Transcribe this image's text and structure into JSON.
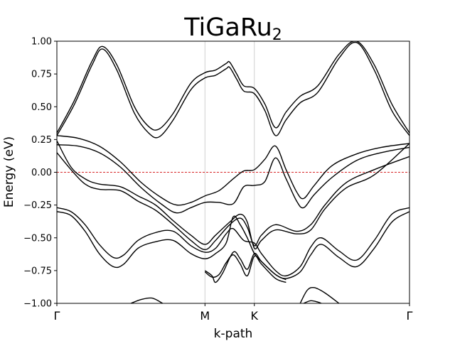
{
  "chart_data": {
    "type": "line",
    "title_base": "TiGaRu",
    "title_sub": "2",
    "xlabel": "k-path",
    "ylabel": "Energy (eV)",
    "ylim": [
      -1.0,
      1.0
    ],
    "xlim": [
      0,
      1
    ],
    "yticks": [
      -1.0,
      -0.75,
      -0.5,
      -0.25,
      0.0,
      0.25,
      0.5,
      0.75,
      1.0
    ],
    "ytick_labels": [
      "−1.00",
      "−0.75",
      "−0.50",
      "−0.25",
      "0.00",
      "0.25",
      "0.50",
      "0.75",
      "1.00"
    ],
    "high_symmetry_points": [
      {
        "label": "Γ",
        "x": 0.0
      },
      {
        "label": "M",
        "x": 0.42
      },
      {
        "label": "K",
        "x": 0.56
      },
      {
        "label": "Γ",
        "x": 1.0
      }
    ],
    "fermi_level": 0.0,
    "series": [
      {
        "points": [
          [
            0,
            0.3
          ],
          [
            0.05,
            0.55
          ],
          [
            0.1,
            0.85
          ],
          [
            0.13,
            0.96
          ],
          [
            0.17,
            0.82
          ],
          [
            0.22,
            0.5
          ],
          [
            0.26,
            0.35
          ],
          [
            0.29,
            0.33
          ],
          [
            0.33,
            0.45
          ],
          [
            0.38,
            0.68
          ],
          [
            0.42,
            0.76
          ],
          [
            0.45,
            0.78
          ],
          [
            0.48,
            0.83
          ],
          [
            0.49,
            0.84
          ],
          [
            0.51,
            0.75
          ],
          [
            0.53,
            0.66
          ],
          [
            0.56,
            0.64
          ],
          [
            0.59,
            0.52
          ],
          [
            0.62,
            0.34
          ],
          [
            0.65,
            0.46
          ],
          [
            0.69,
            0.58
          ],
          [
            0.74,
            0.66
          ],
          [
            0.8,
            0.9
          ],
          [
            0.85,
            1.0
          ],
          [
            0.9,
            0.82
          ],
          [
            0.95,
            0.52
          ],
          [
            1.0,
            0.3
          ]
        ]
      },
      {
        "points": [
          [
            0,
            0.28
          ],
          [
            0.05,
            0.52
          ],
          [
            0.1,
            0.82
          ],
          [
            0.13,
            0.94
          ],
          [
            0.17,
            0.78
          ],
          [
            0.22,
            0.45
          ],
          [
            0.26,
            0.3
          ],
          [
            0.29,
            0.27
          ],
          [
            0.33,
            0.4
          ],
          [
            0.38,
            0.63
          ],
          [
            0.42,
            0.72
          ],
          [
            0.45,
            0.74
          ],
          [
            0.48,
            0.79
          ],
          [
            0.49,
            0.8
          ],
          [
            0.51,
            0.71
          ],
          [
            0.53,
            0.62
          ],
          [
            0.56,
            0.6
          ],
          [
            0.59,
            0.47
          ],
          [
            0.62,
            0.28
          ],
          [
            0.65,
            0.4
          ],
          [
            0.69,
            0.53
          ],
          [
            0.74,
            0.61
          ],
          [
            0.8,
            0.87
          ],
          [
            0.85,
            0.99
          ],
          [
            0.9,
            0.78
          ],
          [
            0.95,
            0.47
          ],
          [
            1.0,
            0.28
          ]
        ]
      },
      {
        "points": [
          [
            0,
            0.28
          ],
          [
            0.06,
            0.26
          ],
          [
            0.12,
            0.2
          ],
          [
            0.18,
            0.08
          ],
          [
            0.24,
            -0.08
          ],
          [
            0.3,
            -0.2
          ],
          [
            0.34,
            -0.25
          ],
          [
            0.38,
            -0.23
          ],
          [
            0.42,
            -0.18
          ],
          [
            0.46,
            -0.14
          ],
          [
            0.5,
            -0.05
          ],
          [
            0.53,
            0.01
          ],
          [
            0.56,
            0.02
          ],
          [
            0.59,
            0.1
          ],
          [
            0.62,
            0.2
          ],
          [
            0.65,
            0.02
          ],
          [
            0.68,
            -0.15
          ],
          [
            0.7,
            -0.2
          ],
          [
            0.73,
            -0.1
          ],
          [
            0.78,
            0.05
          ],
          [
            0.85,
            0.14
          ],
          [
            0.92,
            0.19
          ],
          [
            1.0,
            0.22
          ]
        ]
      },
      {
        "points": [
          [
            0,
            0.21
          ],
          [
            0.06,
            0.2
          ],
          [
            0.12,
            0.15
          ],
          [
            0.18,
            0.04
          ],
          [
            0.24,
            -0.12
          ],
          [
            0.3,
            -0.25
          ],
          [
            0.34,
            -0.31
          ],
          [
            0.38,
            -0.27
          ],
          [
            0.42,
            -0.23
          ],
          [
            0.46,
            -0.23
          ],
          [
            0.5,
            -0.24
          ],
          [
            0.53,
            -0.11
          ],
          [
            0.56,
            -0.1
          ],
          [
            0.59,
            -0.07
          ],
          [
            0.62,
            0.11
          ],
          [
            0.65,
            -0.05
          ],
          [
            0.68,
            -0.22
          ],
          [
            0.7,
            -0.27
          ],
          [
            0.73,
            -0.17
          ],
          [
            0.78,
            -0.04
          ],
          [
            0.85,
            0.09
          ],
          [
            0.92,
            0.15
          ],
          [
            1.0,
            0.19
          ]
        ]
      },
      {
        "points": [
          [
            0,
            0.15
          ],
          [
            0.04,
            0.02
          ],
          [
            0.08,
            -0.09
          ],
          [
            0.12,
            -0.13
          ],
          [
            0.18,
            -0.14
          ],
          [
            0.23,
            -0.22
          ],
          [
            0.28,
            -0.29
          ],
          [
            0.33,
            -0.4
          ],
          [
            0.38,
            -0.52
          ],
          [
            0.42,
            -0.59
          ],
          [
            0.45,
            -0.52
          ],
          [
            0.49,
            -0.4
          ],
          [
            0.52,
            -0.35
          ],
          [
            0.54,
            -0.42
          ],
          [
            0.56,
            -0.56
          ],
          [
            0.58,
            -0.48
          ],
          [
            0.62,
            -0.4
          ],
          [
            0.68,
            -0.45
          ],
          [
            0.72,
            -0.4
          ],
          [
            0.76,
            -0.25
          ],
          [
            0.82,
            -0.08
          ],
          [
            0.9,
            0.02
          ],
          [
            1.0,
            0.12
          ]
        ]
      },
      {
        "points": [
          [
            0,
            0.24
          ],
          [
            0.04,
            0.04
          ],
          [
            0.08,
            -0.05
          ],
          [
            0.12,
            -0.09
          ],
          [
            0.18,
            -0.11
          ],
          [
            0.23,
            -0.18
          ],
          [
            0.28,
            -0.25
          ],
          [
            0.33,
            -0.37
          ],
          [
            0.38,
            -0.48
          ],
          [
            0.42,
            -0.55
          ],
          [
            0.45,
            -0.48
          ],
          [
            0.49,
            -0.38
          ],
          [
            0.52,
            -0.32
          ],
          [
            0.54,
            -0.38
          ],
          [
            0.56,
            -0.58
          ],
          [
            0.58,
            -0.52
          ],
          [
            0.62,
            -0.44
          ],
          [
            0.68,
            -0.47
          ],
          [
            0.72,
            -0.44
          ],
          [
            0.76,
            -0.28
          ],
          [
            0.82,
            -0.12
          ],
          [
            0.9,
            -0.02
          ],
          [
            1.0,
            0.22
          ]
        ]
      },
      {
        "points": [
          [
            0,
            -0.27
          ],
          [
            0.04,
            -0.3
          ],
          [
            0.08,
            -0.4
          ],
          [
            0.12,
            -0.55
          ],
          [
            0.16,
            -0.65
          ],
          [
            0.19,
            -0.63
          ],
          [
            0.23,
            -0.52
          ],
          [
            0.28,
            -0.46
          ],
          [
            0.33,
            -0.45
          ],
          [
            0.38,
            -0.56
          ],
          [
            0.42,
            -0.61
          ],
          [
            0.45,
            -0.58
          ],
          [
            0.48,
            -0.47
          ],
          [
            0.5,
            -0.43
          ],
          [
            0.53,
            -0.52
          ],
          [
            0.56,
            -0.54
          ],
          [
            0.58,
            -0.62
          ],
          [
            0.62,
            -0.75
          ],
          [
            0.65,
            -0.79
          ],
          [
            0.69,
            -0.72
          ],
          [
            0.72,
            -0.57
          ],
          [
            0.75,
            -0.5
          ],
          [
            0.8,
            -0.6
          ],
          [
            0.85,
            -0.67
          ],
          [
            0.9,
            -0.52
          ],
          [
            0.95,
            -0.32
          ],
          [
            1.0,
            -0.27
          ]
        ]
      },
      {
        "points": [
          [
            0,
            -0.3
          ],
          [
            0.04,
            -0.33
          ],
          [
            0.08,
            -0.45
          ],
          [
            0.12,
            -0.62
          ],
          [
            0.16,
            -0.72
          ],
          [
            0.19,
            -0.7
          ],
          [
            0.23,
            -0.58
          ],
          [
            0.28,
            -0.53
          ],
          [
            0.33,
            -0.52
          ],
          [
            0.38,
            -0.62
          ],
          [
            0.42,
            -0.66
          ],
          [
            0.45,
            -0.62
          ],
          [
            0.48,
            -0.54
          ],
          [
            0.5,
            -0.34
          ],
          [
            0.52,
            -0.4
          ],
          [
            0.54,
            -0.5
          ],
          [
            0.56,
            -0.62
          ],
          [
            0.58,
            -0.68
          ],
          [
            0.62,
            -0.78
          ],
          [
            0.65,
            -0.81
          ],
          [
            0.69,
            -0.76
          ],
          [
            0.72,
            -0.63
          ],
          [
            0.75,
            -0.55
          ],
          [
            0.8,
            -0.65
          ],
          [
            0.85,
            -0.72
          ],
          [
            0.9,
            -0.58
          ],
          [
            0.95,
            -0.38
          ],
          [
            1.0,
            -0.3
          ]
        ]
      },
      {
        "points": [
          [
            0.42,
            -0.75
          ],
          [
            0.44,
            -0.79
          ],
          [
            0.45,
            -0.84
          ],
          [
            0.47,
            -0.77
          ],
          [
            0.5,
            -0.61
          ],
          [
            0.52,
            -0.66
          ],
          [
            0.54,
            -0.74
          ],
          [
            0.56,
            -0.62
          ],
          [
            0.58,
            -0.68
          ],
          [
            0.62,
            -0.78
          ],
          [
            0.65,
            -0.82
          ]
        ]
      },
      {
        "points": [
          [
            0.42,
            -0.76
          ],
          [
            0.44,
            -0.8
          ],
          [
            0.46,
            -0.78
          ],
          [
            0.48,
            -0.69
          ],
          [
            0.5,
            -0.63
          ],
          [
            0.52,
            -0.7
          ],
          [
            0.54,
            -0.79
          ],
          [
            0.56,
            -0.64
          ],
          [
            0.58,
            -0.7
          ],
          [
            0.62,
            -0.81
          ],
          [
            0.65,
            -0.84
          ]
        ]
      },
      {
        "points": [
          [
            0.21,
            -1.0
          ],
          [
            0.24,
            -0.97
          ],
          [
            0.27,
            -0.96
          ],
          [
            0.3,
            -1.0
          ]
        ]
      },
      {
        "points": [
          [
            0.69,
            -1.0
          ],
          [
            0.71,
            -0.9
          ],
          [
            0.73,
            -0.88
          ],
          [
            0.76,
            -0.92
          ],
          [
            0.8,
            -1.0
          ]
        ]
      },
      {
        "points": [
          [
            0.7,
            -1.0
          ],
          [
            0.72,
            -0.98
          ],
          [
            0.74,
            -0.99
          ],
          [
            0.75,
            -1.0
          ]
        ]
      }
    ]
  }
}
